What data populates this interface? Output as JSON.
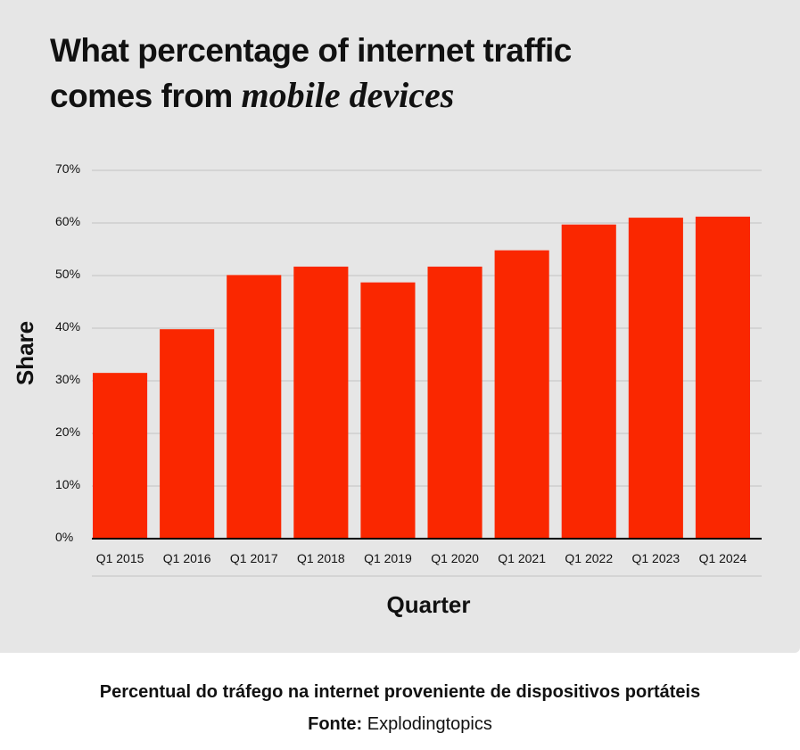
{
  "title": {
    "line1": "What percentage of internet traffic",
    "line2_prefix": "comes from ",
    "line2_emphasis": "mobile devices"
  },
  "caption": "Percentual do tráfego na internet proveniente de dispositivos portáteis",
  "source": {
    "label": "Fonte:",
    "value": "Explodingtopics"
  },
  "colors": {
    "bar": "#fa2700",
    "panel_background": "#e6e6e6",
    "gridline": "#c3c3c3",
    "axis_line": "#000000",
    "text": "#111111"
  },
  "chart_data": {
    "type": "bar",
    "title": "What percentage of internet traffic comes from mobile devices",
    "xlabel": "Quarter",
    "ylabel": "Share",
    "categories": [
      "Q1 2015",
      "Q1 2016",
      "Q1 2017",
      "Q1 2018",
      "Q1 2019",
      "Q1 2020",
      "Q1 2021",
      "Q1 2022",
      "Q1 2023",
      "Q1 2024"
    ],
    "values": [
      31.5,
      39.8,
      50.1,
      51.7,
      48.7,
      51.7,
      54.8,
      59.7,
      61.0,
      61.2
    ],
    "ylim": [
      0,
      70
    ],
    "yticks": [
      0,
      10,
      20,
      30,
      40,
      50,
      60,
      70
    ],
    "ytick_labels": [
      "0%",
      "10%",
      "20%",
      "30%",
      "40%",
      "50%",
      "60%",
      "70%"
    ],
    "grid": true,
    "legend": "none"
  }
}
